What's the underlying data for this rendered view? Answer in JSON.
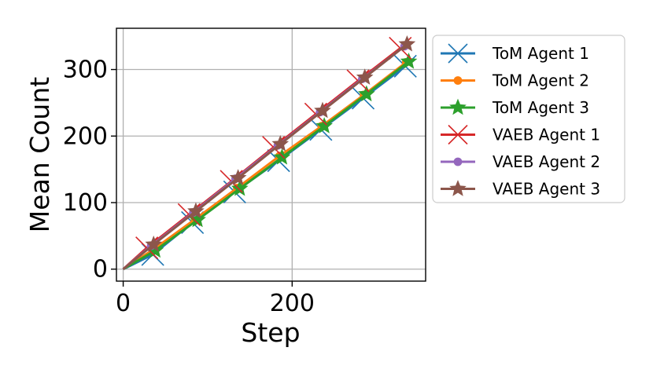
{
  "chart_data": {
    "type": "line",
    "title": "",
    "xlabel": "Step",
    "ylabel": "Mean Count",
    "xlim": [
      -8,
      358
    ],
    "ylim": [
      -18,
      362
    ],
    "x_ticks": [
      0,
      200
    ],
    "y_ticks": [
      0,
      100,
      200,
      300
    ],
    "x_tick_labels": [
      "0",
      "200"
    ],
    "y_tick_labels": [
      "0",
      "100",
      "200",
      "300"
    ],
    "grid": true,
    "legend_position": "outside-right",
    "series": [
      {
        "name": "ToM Agent 1",
        "color": "#1f77b4",
        "marker": "x",
        "x": [
          0,
          35,
          82,
          132,
          184,
          234,
          284,
          334
        ],
        "y": [
          0,
          22,
          70,
          116,
          163,
          210,
          257,
          305
        ]
      },
      {
        "name": "ToM Agent 2",
        "color": "#ff7f0e",
        "marker": "circle",
        "x": [
          0,
          35,
          85,
          135,
          185,
          235,
          285,
          335
        ],
        "y": [
          0,
          29,
          75,
          122,
          170,
          215,
          262,
          311
        ]
      },
      {
        "name": "ToM Agent 3",
        "color": "#2ca02c",
        "marker": "star",
        "x": [
          0,
          38,
          88,
          138,
          188,
          238,
          288,
          338
        ],
        "y": [
          0,
          28,
          74,
          121,
          168,
          215,
          263,
          312
        ]
      },
      {
        "name": "VAEB Agent 1",
        "color": "#d62728",
        "marker": "x",
        "x": [
          0,
          28,
          78,
          128,
          178,
          228,
          278,
          328
        ],
        "y": [
          0,
          32,
          82,
          132,
          183,
          233,
          283,
          332
        ]
      },
      {
        "name": "VAEB Agent 2",
        "color": "#9467bd",
        "marker": "circle",
        "x": [
          0,
          33,
          83,
          133,
          183,
          233,
          283,
          333
        ],
        "y": [
          0,
          35,
          85,
          136,
          186,
          236,
          286,
          335
        ]
      },
      {
        "name": "VAEB Agent 3",
        "color": "#8c564b",
        "marker": "star",
        "x": [
          0,
          36,
          86,
          136,
          186,
          236,
          286,
          336
        ],
        "y": [
          0,
          37,
          87,
          137,
          188,
          238,
          288,
          338
        ]
      }
    ]
  }
}
